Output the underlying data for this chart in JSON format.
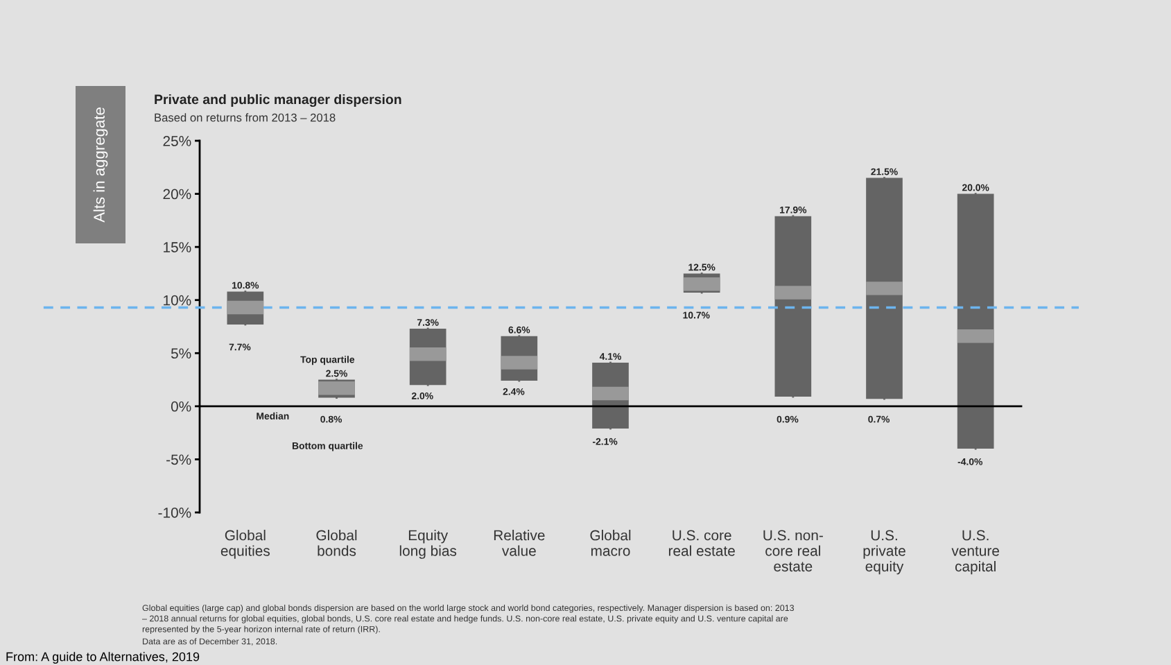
{
  "chart_data": {
    "type": "box",
    "title": "Private and public manager dispersion",
    "subtitle": "Based on returns from 2013 – 2018",
    "categories": [
      "Global\nequities",
      "Global\nbonds",
      "Equity\nlong bias",
      "Relative\nvalue",
      "Global\nmacro",
      "U.S. core\nreal estate",
      "U.S. non-\ncore real\nestate",
      "U.S.\nprivate\nequity",
      "U.S.\nventure\ncapital"
    ],
    "boxes": [
      {
        "low": 7.7,
        "q1": 7.7,
        "median": 9.3,
        "q3": 10.8,
        "high": 10.8
      },
      {
        "low": 0.8,
        "q1": 0.8,
        "median": 1.7,
        "q3": 2.5,
        "high": 2.5
      },
      {
        "low": 2.0,
        "q1": 2.0,
        "median": 4.9,
        "q3": 7.3,
        "high": 7.3
      },
      {
        "low": 2.4,
        "q1": 2.4,
        "median": 4.1,
        "q3": 6.6,
        "high": 6.6
      },
      {
        "low": -2.1,
        "q1": -2.1,
        "median": 1.2,
        "q3": 4.1,
        "high": 4.1
      },
      {
        "low": 10.7,
        "q1": 10.7,
        "median": 11.5,
        "q3": 12.5,
        "high": 12.5
      },
      {
        "low": 0.9,
        "q1": 0.9,
        "median": 10.7,
        "q3": 17.9,
        "high": 17.9
      },
      {
        "low": 0.7,
        "q1": 0.7,
        "median": 11.1,
        "q3": 21.5,
        "high": 21.5
      },
      {
        "low": -4.0,
        "q1": -4.0,
        "median": 6.6,
        "q3": 20.0,
        "high": 20.0
      }
    ],
    "color": "#646464",
    "ylim": [
      -10,
      25
    ],
    "yticks": [
      {
        "value": -10,
        "label": "-10%"
      },
      {
        "value": -5,
        "label": "-5%"
      },
      {
        "value": 0,
        "label": "0%"
      },
      {
        "value": 5,
        "label": "5%"
      },
      {
        "value": 10,
        "label": "10%"
      },
      {
        "value": 15,
        "label": "15%"
      },
      {
        "value": 20,
        "label": "20%"
      },
      {
        "value": 25,
        "label": "25%"
      }
    ],
    "ref_lines": [
      {
        "axis": "y",
        "value": 9.3,
        "color": "#6cb4ee",
        "line_style": "dashed"
      }
    ],
    "annotations": [
      {
        "text": "10.8%",
        "x": "Global\nequities",
        "y": 10.8
      },
      {
        "text": "2.5%",
        "x": "Global\nbonds",
        "y": 2.5
      },
      {
        "text": "7.3%",
        "x": "Equity\nlong bias",
        "y": 7.3
      },
      {
        "text": "6.6%",
        "x": "Relative\nvalue",
        "y": 6.6
      },
      {
        "text": "4.1%",
        "x": "Global\nmacro",
        "y": 4.1
      },
      {
        "text": "12.5%",
        "x": "U.S. core\nreal estate",
        "y": 12.5
      },
      {
        "text": "17.9%",
        "x": "U.S. non-\ncore real\nestate",
        "y": 17.9
      },
      {
        "text": "21.5%",
        "x": "U.S.\nprivate\nequity",
        "y": 21.5
      },
      {
        "text": "20.0%",
        "x": "U.S.\nventure\ncapital",
        "y": 20.0
      },
      {
        "text": "7.7%",
        "x": "Global\nequities",
        "y": 7.7
      },
      {
        "text": "0.8%",
        "x": "Global\nbonds",
        "y": 0.8
      },
      {
        "text": "2.0%",
        "x": "Equity\nlong bias",
        "y": 2.0
      },
      {
        "text": "2.4%",
        "x": "Relative\nvalue",
        "y": 2.4
      },
      {
        "text": "-2.1%",
        "x": "Global\nmacro",
        "y": -2.1
      },
      {
        "text": "10.7%",
        "x": "U.S. core\nreal estate",
        "y": 10.7
      },
      {
        "text": "0.9%",
        "x": "U.S. non-\ncore real\nestate",
        "y": 0.9
      },
      {
        "text": "0.7%",
        "x": "U.S.\nprivate\nequity",
        "y": 0.7
      },
      {
        "text": "-4.0%",
        "x": "U.S.\nventure\ncapital",
        "y": -4.0
      },
      "Top quartile",
      "Median",
      "Bottom quartile",
      "Alts in aggregate",
      "Global equities (large cap) and global bonds dispersion are based on the world large stock and world bond categories, respectively. Manager dispersion is based on: 2013\n– 2018 annual returns for global equities, global bonds, U.S. core real estate and hedge funds. U.S. non-core real estate, U.S. private equity and U.S. venture capital are\nrepresented by the 5-year horizon internal rate of return (IRR).",
      "Data are as of December 31, 2018.",
      "From: A guide to Alternatives, 2019"
    ]
  }
}
